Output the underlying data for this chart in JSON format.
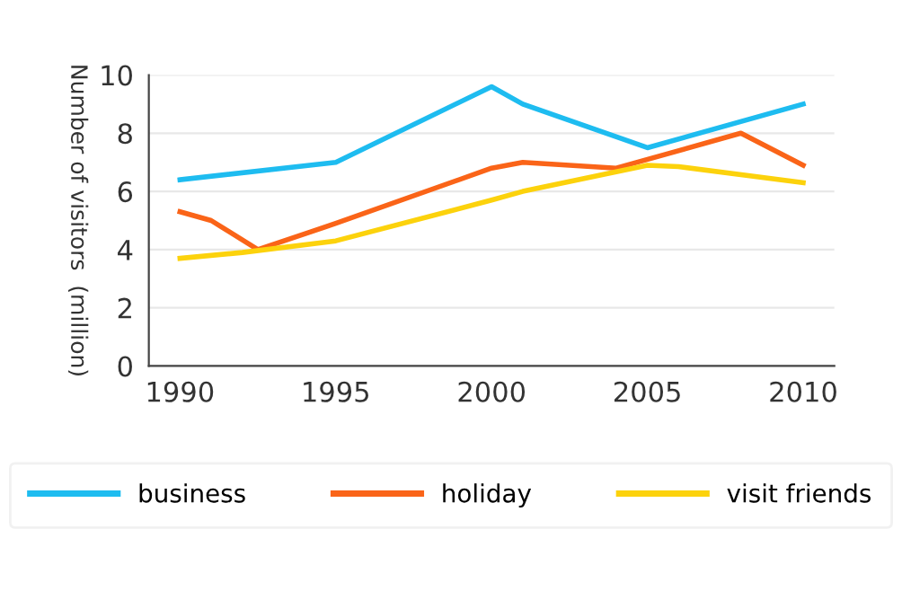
{
  "chart_data": {
    "type": "line",
    "ylabel": "Number of visitors  (million)",
    "xlim": [
      1989,
      2011
    ],
    "xticks": [
      1990,
      1995,
      2000,
      2005,
      2010
    ],
    "ylim": [
      0,
      10
    ],
    "yticks": [
      0,
      2,
      4,
      6,
      8,
      10
    ],
    "grid": "y",
    "legend": "bottom",
    "marker": "none",
    "line_style": "solid",
    "series": [
      {
        "name": "business",
        "color": "#1ebcf0",
        "x": [
          1990,
          1995,
          2000,
          2001,
          2005,
          2010
        ],
        "values": [
          6.4,
          7.0,
          9.6,
          9.0,
          7.5,
          9.0
        ]
      },
      {
        "name": "holiday",
        "color": "#fa6418",
        "x": [
          1990,
          1991,
          1992.5,
          1995,
          2000,
          2001,
          2004,
          2008,
          2010
        ],
        "values": [
          5.3,
          5.0,
          4.0,
          4.9,
          6.8,
          7.0,
          6.8,
          8.0,
          6.9
        ]
      },
      {
        "name": "visit friends",
        "color": "#fcd20c",
        "x": [
          1990,
          1992,
          1995,
          2000,
          2001,
          2005,
          2006,
          2010
        ],
        "values": [
          3.7,
          3.9,
          4.3,
          5.7,
          6.0,
          6.9,
          6.85,
          6.3
        ]
      }
    ]
  }
}
